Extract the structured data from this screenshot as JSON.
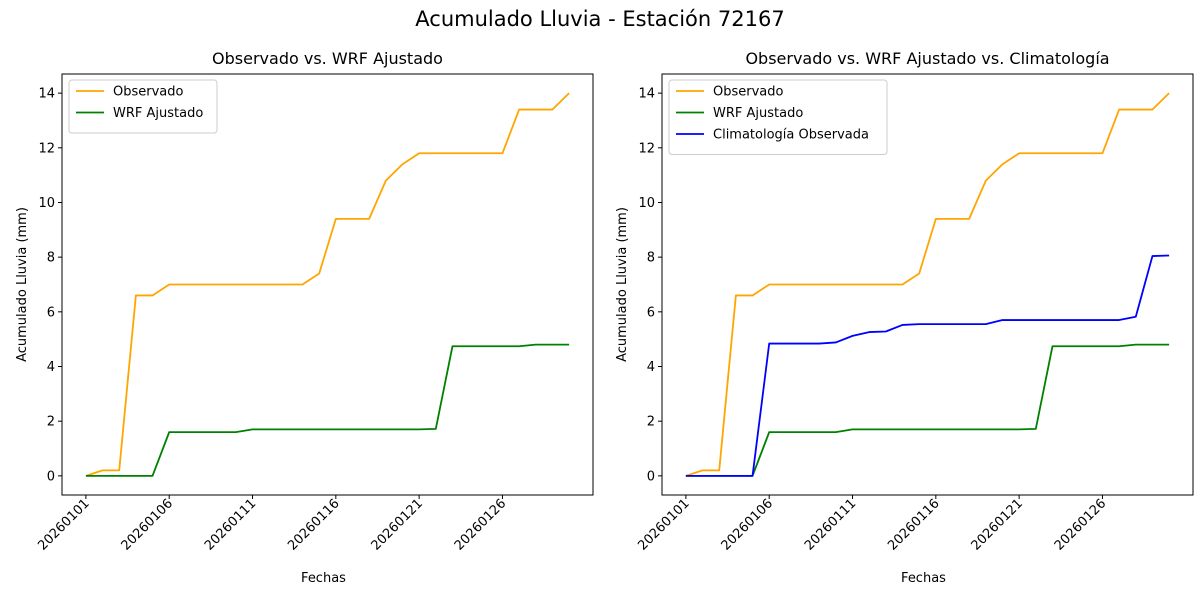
{
  "figure": {
    "title": "Acumulado Lluvia - Estación 72167"
  },
  "chart_data": [
    {
      "type": "line",
      "title": "Observado vs. WRF Ajustado",
      "xlabel": "Fechas",
      "ylabel": "Acumulado Lluvia (mm)",
      "x": [
        "20260101",
        "20260102",
        "20260103",
        "20260104",
        "20260105",
        "20260106",
        "20260107",
        "20260108",
        "20260109",
        "20260110",
        "20260111",
        "20260112",
        "20260113",
        "20260114",
        "20260115",
        "20260116",
        "20260117",
        "20260118",
        "20260119",
        "20260120",
        "20260121",
        "20260122",
        "20260123",
        "20260124",
        "20260125",
        "20260126",
        "20260127",
        "20260128",
        "20260129",
        "20260130"
      ],
      "xticks": [
        "20260101",
        "20260106",
        "20260111",
        "20260116",
        "20260121",
        "20260126"
      ],
      "ylim": [
        -0.7,
        14.7
      ],
      "yticks": [
        0,
        2,
        4,
        6,
        8,
        10,
        12,
        14
      ],
      "grid": false,
      "legend": "upper left",
      "series": [
        {
          "name": "Observado",
          "color": "#ffa500",
          "values": [
            0,
            0.2,
            0.2,
            6.6,
            6.6,
            7.0,
            7.0,
            7.0,
            7.0,
            7.0,
            7.0,
            7.0,
            7.0,
            7.0,
            7.4,
            9.4,
            9.4,
            9.4,
            10.8,
            11.4,
            11.8,
            11.8,
            11.8,
            11.8,
            11.8,
            11.8,
            13.4,
            13.4,
            13.4,
            14.0
          ]
        },
        {
          "name": "WRF Ajustado",
          "color": "#008000",
          "values": [
            0,
            0,
            0,
            0,
            0,
            1.6,
            1.6,
            1.6,
            1.6,
            1.6,
            1.7,
            1.7,
            1.7,
            1.7,
            1.7,
            1.7,
            1.7,
            1.7,
            1.7,
            1.7,
            1.7,
            1.72,
            4.74,
            4.74,
            4.74,
            4.74,
            4.74,
            4.8,
            4.8,
            4.8
          ]
        }
      ]
    },
    {
      "type": "line",
      "title": "Observado vs. WRF Ajustado vs. Climatología",
      "xlabel": "Fechas",
      "ylabel": "Acumulado Lluvia (mm)",
      "x": [
        "20260101",
        "20260102",
        "20260103",
        "20260104",
        "20260105",
        "20260106",
        "20260107",
        "20260108",
        "20260109",
        "20260110",
        "20260111",
        "20260112",
        "20260113",
        "20260114",
        "20260115",
        "20260116",
        "20260117",
        "20260118",
        "20260119",
        "20260120",
        "20260121",
        "20260122",
        "20260123",
        "20260124",
        "20260125",
        "20260126",
        "20260127",
        "20260128",
        "20260129",
        "20260130"
      ],
      "xticks": [
        "20260101",
        "20260106",
        "20260111",
        "20260116",
        "20260121",
        "20260126"
      ],
      "ylim": [
        -0.7,
        14.7
      ],
      "yticks": [
        0,
        2,
        4,
        6,
        8,
        10,
        12,
        14
      ],
      "grid": false,
      "legend": "upper left",
      "series": [
        {
          "name": "Observado",
          "color": "#ffa500",
          "values": [
            0,
            0.2,
            0.2,
            6.6,
            6.6,
            7.0,
            7.0,
            7.0,
            7.0,
            7.0,
            7.0,
            7.0,
            7.0,
            7.0,
            7.4,
            9.4,
            9.4,
            9.4,
            10.8,
            11.4,
            11.8,
            11.8,
            11.8,
            11.8,
            11.8,
            11.8,
            13.4,
            13.4,
            13.4,
            14.0
          ]
        },
        {
          "name": "WRF Ajustado",
          "color": "#008000",
          "values": [
            0,
            0,
            0,
            0,
            0,
            1.6,
            1.6,
            1.6,
            1.6,
            1.6,
            1.7,
            1.7,
            1.7,
            1.7,
            1.7,
            1.7,
            1.7,
            1.7,
            1.7,
            1.7,
            1.7,
            1.72,
            4.74,
            4.74,
            4.74,
            4.74,
            4.74,
            4.8,
            4.8,
            4.8
          ]
        },
        {
          "name": "Climatología Observada",
          "color": "#0000ff",
          "values": [
            0,
            0,
            0,
            0,
            0,
            4.84,
            4.84,
            4.84,
            4.84,
            4.88,
            5.12,
            5.26,
            5.28,
            5.52,
            5.55,
            5.55,
            5.55,
            5.55,
            5.55,
            5.7,
            5.7,
            5.7,
            5.7,
            5.7,
            5.7,
            5.7,
            5.7,
            5.82,
            8.04,
            8.06
          ]
        }
      ]
    }
  ]
}
